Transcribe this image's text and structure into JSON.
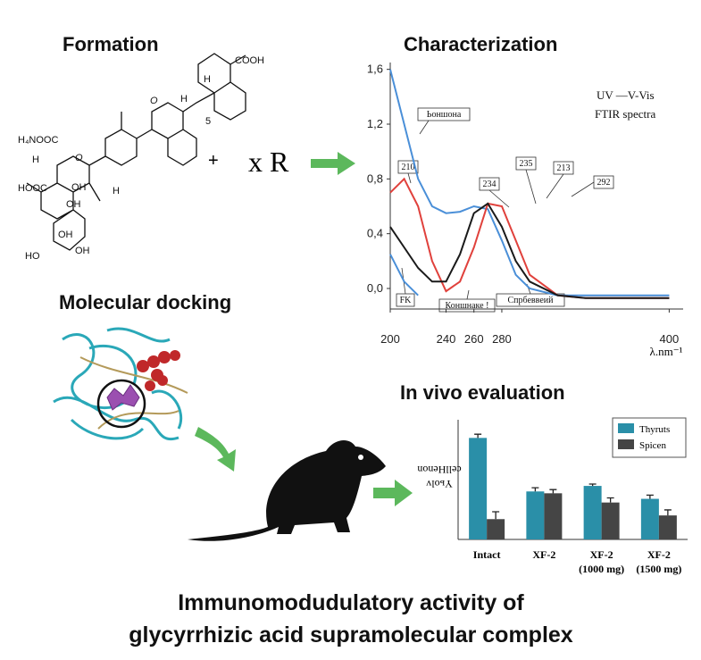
{
  "headings": {
    "formation": "Formation",
    "characterization": "Characterization",
    "docking": "Molecular docking",
    "in_vivo": "In vivo evaluation"
  },
  "title": [
    "Immunomodudulatory activity of",
    "glycyrrhizic acid supramolecular complex"
  ],
  "molecule": {
    "labels": [
      "COOH",
      "H",
      "O",
      "H",
      "5",
      "H₄NOOC",
      "H",
      "O",
      "HOOC",
      "OH",
      "H",
      "OH",
      "OH",
      "HO",
      "OH"
    ],
    "plus": "+",
    "reagent": "x R"
  },
  "chart_data": [
    {
      "type": "line",
      "x": [
        200,
        210,
        220,
        230,
        240,
        250,
        260,
        270,
        280,
        290,
        300,
        320,
        340,
        360,
        380,
        400
      ],
      "series": [
        {
          "color": "#4a8fd8",
          "values": [
            1.6,
            1.2,
            0.8,
            0.6,
            0.55,
            0.56,
            0.6,
            0.58,
            0.35,
            0.1,
            0.0,
            -0.05,
            -0.05,
            -0.05,
            -0.05,
            -0.05
          ]
        },
        {
          "color": "#e0413c",
          "values": [
            0.7,
            0.8,
            0.6,
            0.2,
            -0.02,
            0.05,
            0.3,
            0.62,
            0.6,
            0.35,
            0.1,
            -0.05,
            -0.07,
            -0.07,
            -0.07,
            -0.07
          ]
        },
        {
          "color": "#1a1a1a",
          "values": [
            0.45,
            0.3,
            0.15,
            0.05,
            0.05,
            0.25,
            0.55,
            0.62,
            0.45,
            0.2,
            0.05,
            -0.05,
            -0.07,
            -0.07,
            -0.07,
            -0.07
          ]
        },
        {
          "color": "#4a8fd8",
          "values": [
            0.25,
            0.05,
            -0.05,
            null,
            null,
            null,
            null,
            null,
            null,
            null,
            null,
            null,
            null,
            null,
            null,
            null
          ]
        }
      ],
      "xlim": [
        200,
        410
      ],
      "xticks": [
        200,
        240,
        260,
        280,
        400
      ],
      "ylim": [
        -0.15,
        1.65
      ],
      "yticks": [
        {
          "value": 0,
          "label": "0,0"
        },
        {
          "value": 0.4,
          "label": "0,4"
        },
        {
          "value": 0.8,
          "label": "0,8"
        },
        {
          "value": 1.2,
          "label": "1,2"
        },
        {
          "value": 1.6,
          "label": "1,6"
        }
      ],
      "x_label": "λ.nm⁻¹",
      "annotations": [
        "UV —V-Vis",
        "FTIR spectra",
        "Ьоншона",
        "210",
        "234",
        "235",
        "213",
        "292",
        "FK",
        "Коншнаке !",
        "Спрбеввеий"
      ]
    },
    {
      "type": "bar",
      "categories": [
        [
          "Intact"
        ],
        [
          "XF-2"
        ],
        [
          "XF-2",
          "(1000 mg)"
        ],
        [
          "XF-2",
          "(1500 mg)"
        ]
      ],
      "y_label": [
        "Yьolv",
        "cellHenon"
      ],
      "series": [
        {
          "name": "Thyruts",
          "color": "#2a8fa8",
          "values": [
            110,
            52,
            58,
            44
          ],
          "errors": [
            4,
            4,
            2,
            4
          ]
        },
        {
          "name": "Spicen",
          "color": "#454545",
          "values": [
            22,
            50,
            40,
            26
          ],
          "errors": [
            8,
            4,
            5,
            6
          ]
        }
      ],
      "ylim": [
        0,
        120
      ]
    }
  ]
}
